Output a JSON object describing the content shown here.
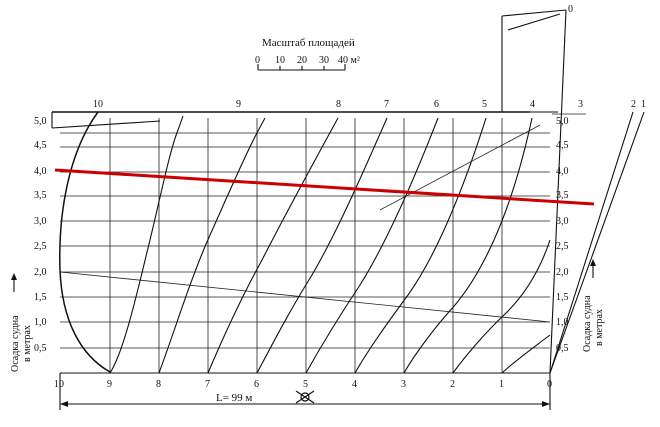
{
  "title": "Масштаб площадей",
  "area_scale_ticks": [
    "0",
    "10",
    "20",
    "30",
    "40 м²"
  ],
  "draft_label_line1": "Осадка судна",
  "draft_label_line2": "в метрах",
  "length_label": "L= 99 м",
  "top_station_labels": [
    "10",
    "9",
    "8",
    "7",
    "6",
    "5",
    "4",
    "3",
    "2",
    "1"
  ],
  "top_zero_label": "0",
  "bottom_station_labels": [
    "10",
    "9",
    "8",
    "7",
    "6",
    "5",
    "4",
    "3",
    "2",
    "1",
    "0"
  ],
  "draft_values_left": [
    "5,0",
    "4,5",
    "4,0",
    "3,5",
    "3,0",
    "2,5",
    "2,0",
    "1,5",
    "1,0",
    "0,5"
  ],
  "draft_values_right": [
    "5,0",
    "4,5",
    "4,0",
    "3,5",
    "3,0",
    "2,5",
    "2,0",
    "1,5",
    "1,0",
    "0,5"
  ],
  "trim_waterline": {
    "draft_aft_m": 4.0,
    "draft_fwd_m": 3.4,
    "color": "#cc0000"
  },
  "colors": {
    "ink": "#111111",
    "highlight": "#cc0000",
    "background": "#ffffff"
  }
}
